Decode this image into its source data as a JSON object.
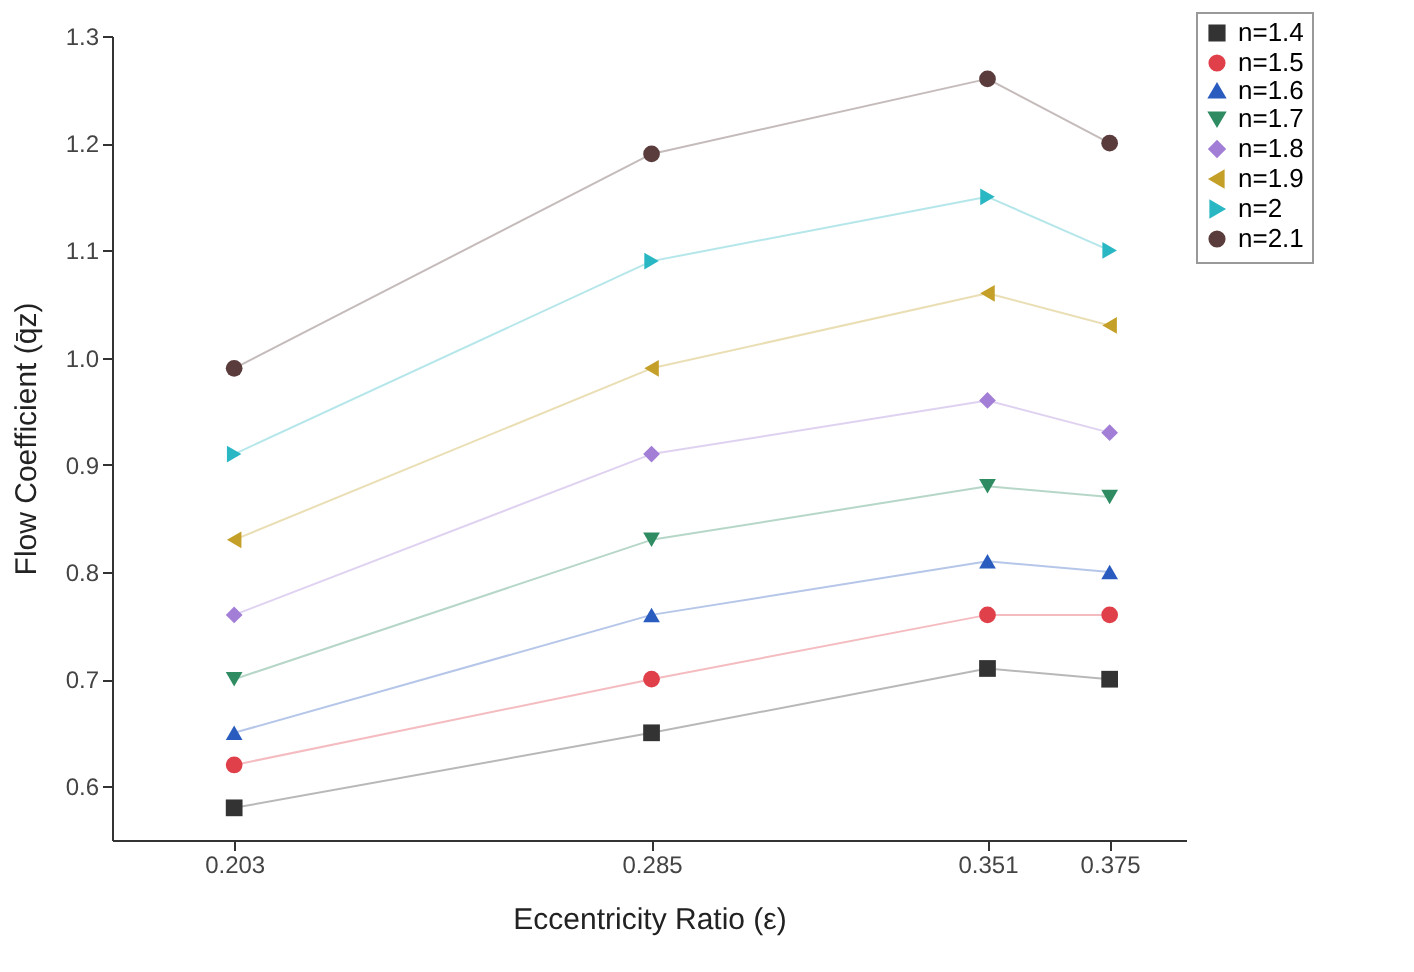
{
  "chart_data": {
    "type": "line",
    "xlabel": "Eccentricity Ratio (ε)",
    "ylabel": "Flow Coefficient (q̄z)",
    "x": [
      0.203,
      0.285,
      0.351,
      0.375
    ],
    "xlim": [
      0.179,
      0.39
    ],
    "xticks": [
      0.203,
      0.285,
      0.351,
      0.375
    ],
    "ylim": [
      0.55,
      1.3
    ],
    "yticks": [
      0.6,
      0.7,
      0.8,
      0.9,
      {
        "value": 1,
        "label": "1.0"
      },
      1.1,
      1.2,
      1.3
    ],
    "grid": false,
    "legend": "top right",
    "line_style": "solid",
    "series": [
      {
        "name": "n=1.4",
        "color": "#333333",
        "marker": "square",
        "values": [
          0.58,
          0.65,
          0.71,
          0.7
        ]
      },
      {
        "name": "n=1.5",
        "color": "#e0404a",
        "marker": "circle",
        "values": [
          0.62,
          0.7,
          0.76,
          0.76
        ]
      },
      {
        "name": "n=1.6",
        "color": "#2a5cbf",
        "marker": "triangle-up",
        "values": [
          0.65,
          0.76,
          0.81,
          0.8
        ]
      },
      {
        "name": "n=1.7",
        "color": "#2e8b62",
        "marker": "triangle-down",
        "values": [
          0.7,
          0.83,
          0.88,
          0.87
        ]
      },
      {
        "name": "n=1.8",
        "color": "#a27ed6",
        "marker": "diamond",
        "values": [
          0.76,
          0.91,
          0.96,
          0.93
        ]
      },
      {
        "name": "n=1.9",
        "color": "#c4a028",
        "marker": "triangle-left",
        "values": [
          0.83,
          0.99,
          1.06,
          1.03
        ]
      },
      {
        "name": "n=2",
        "color": "#2ab7c4",
        "marker": "triangle-right",
        "values": [
          0.91,
          1.09,
          1.15,
          1.1
        ]
      },
      {
        "name": "n=2.1",
        "color": "#5a3c3c",
        "marker": "circle",
        "values": [
          0.99,
          1.19,
          1.26,
          1.2
        ]
      }
    ]
  }
}
